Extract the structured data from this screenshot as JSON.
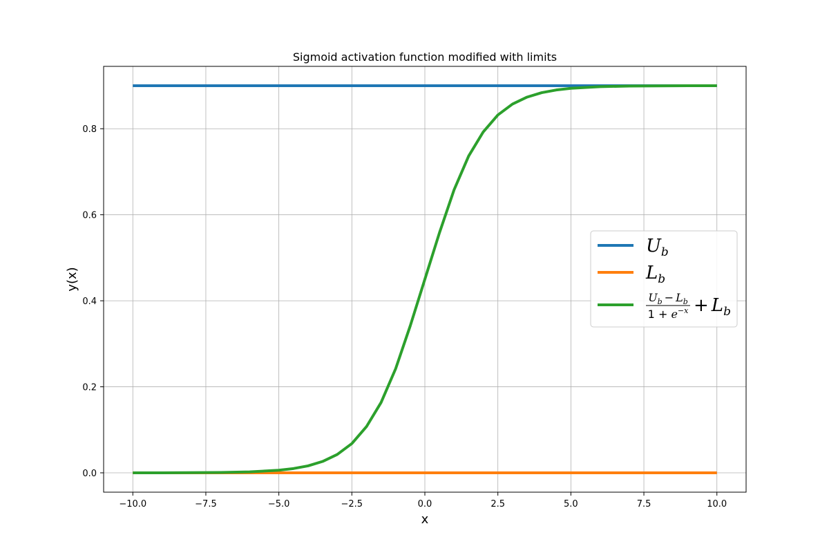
{
  "chart_data": {
    "type": "line",
    "title": "Sigmoid activation function modified with limits",
    "xlabel": "x",
    "ylabel": "y(x)",
    "xlim": [
      -11,
      11
    ],
    "ylim": [
      -0.045,
      0.945
    ],
    "xticks": [
      -10.0,
      -7.5,
      -5.0,
      -2.5,
      0.0,
      2.5,
      5.0,
      7.5,
      10.0
    ],
    "xtick_labels": [
      "−10.0",
      "−7.5",
      "−5.0",
      "−2.5",
      "0.0",
      "2.5",
      "5.0",
      "7.5",
      "10.0"
    ],
    "yticks": [
      0.0,
      0.2,
      0.4,
      0.6,
      0.8
    ],
    "ytick_labels": [
      "0.0",
      "0.2",
      "0.4",
      "0.6",
      "0.8"
    ],
    "grid": true,
    "legend_position": "center-right",
    "series": [
      {
        "legend": {
          "main": "U",
          "sub": "b"
        },
        "color": "#1f77b4",
        "x": [
          -10,
          10
        ],
        "y": [
          0.9,
          0.9
        ]
      },
      {
        "legend": {
          "main": "L",
          "sub": "b"
        },
        "color": "#ff7f0e",
        "x": [
          -10,
          10
        ],
        "y": [
          0.0,
          0.0
        ]
      },
      {
        "legend": {
          "num_main": "U",
          "num_sub": "b",
          "num_op": "−",
          "num_main2": "L",
          "num_sub2": "b",
          "den_text": "1 + ",
          "den_base": "e",
          "den_exp": "−x",
          "tail_op": "+",
          "tail_main": "L",
          "tail_sub": "b"
        },
        "color": "#2ca02c",
        "x": [
          -10,
          -9,
          -8,
          -7,
          -6,
          -5,
          -4.5,
          -4,
          -3.5,
          -3,
          -2.5,
          -2,
          -1.5,
          -1,
          -0.5,
          0,
          0.5,
          1,
          1.5,
          2,
          2.5,
          3,
          3.5,
          4,
          4.5,
          5,
          6,
          7,
          8,
          9,
          10
        ],
        "y": [
          0.0,
          0.0001,
          0.0003,
          0.0008,
          0.0022,
          0.006,
          0.0099,
          0.0162,
          0.0265,
          0.0427,
          0.068,
          0.1073,
          0.1634,
          0.2421,
          0.3418,
          0.45,
          0.5582,
          0.6579,
          0.7366,
          0.7927,
          0.832,
          0.8573,
          0.8735,
          0.8838,
          0.8901,
          0.894,
          0.8978,
          0.8992,
          0.8997,
          0.8999,
          0.9
        ]
      }
    ]
  }
}
